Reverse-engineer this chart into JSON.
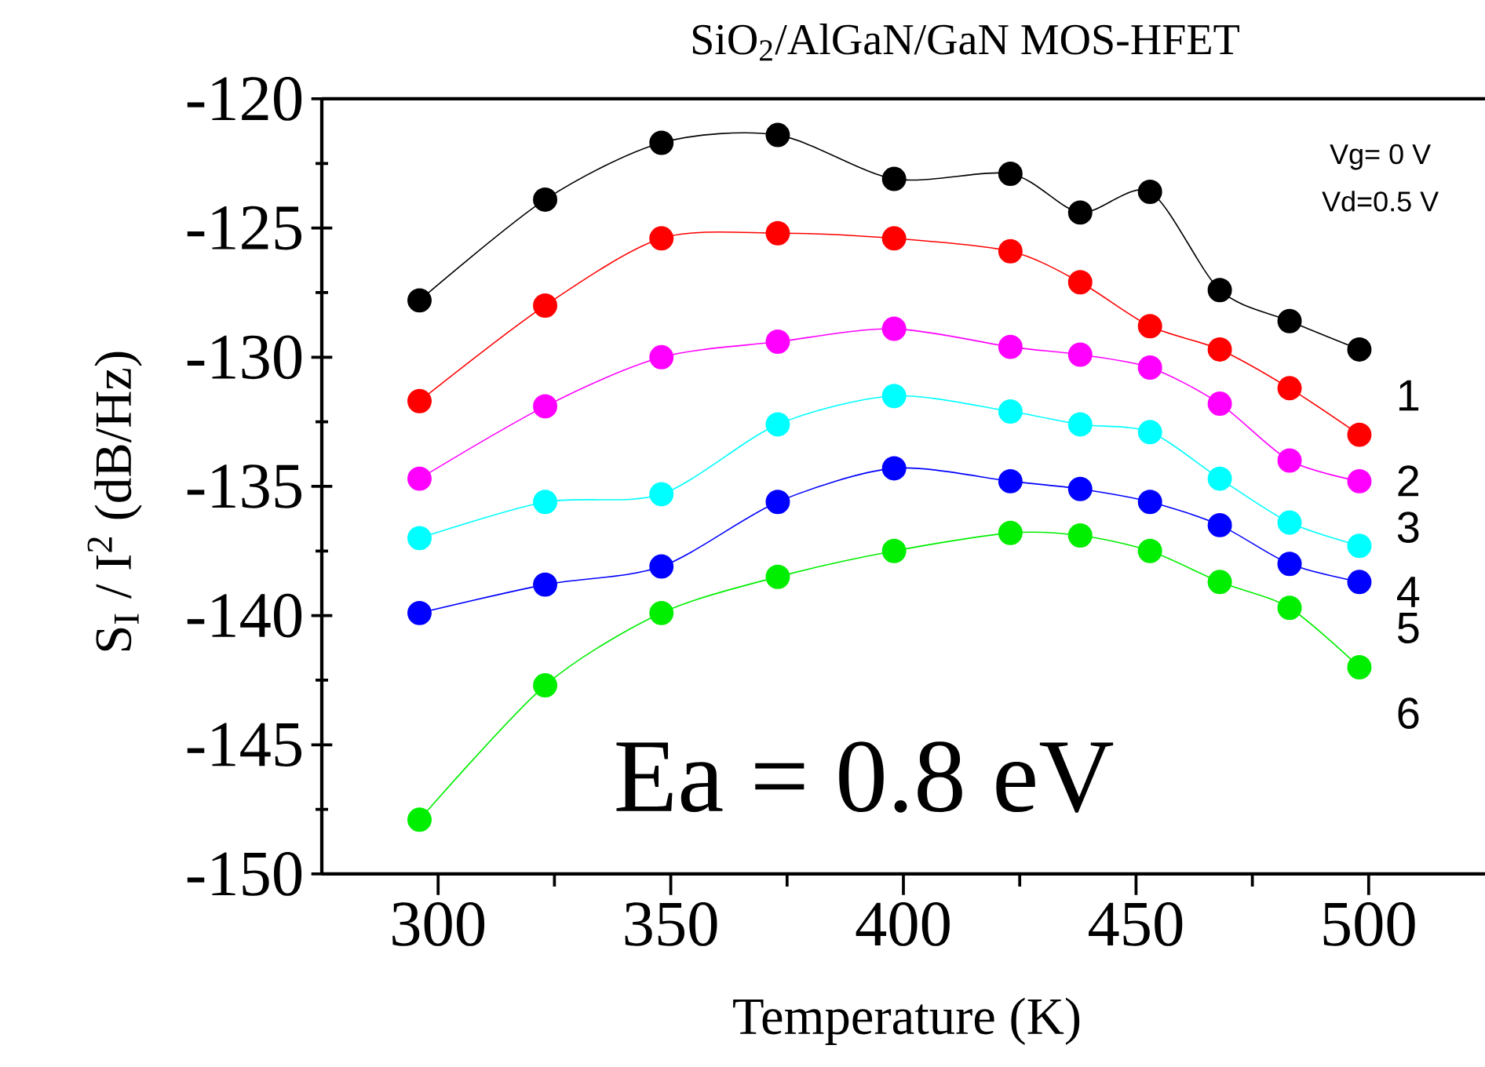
{
  "chart_data": {
    "type": "line",
    "title": "SiO$_{2}$/AlGaN/GaN   MOS-HFET",
    "xlabel": "Temperature  (K)",
    "ylabel": "S$_{I}$ / I$^{2}$   (dB/Hz)",
    "x": [
      296,
      323,
      348,
      373,
      398,
      423,
      438,
      453,
      468,
      483,
      498
    ],
    "series": [
      {
        "name": "1",
        "color": "#000000",
        "values": [
          -127.8,
          -123.9,
          -121.7,
          -121.4,
          -123.1,
          -122.9,
          -124.4,
          -123.6,
          -127.4,
          -128.6,
          -129.7
        ]
      },
      {
        "name": "2",
        "color": "#ff0000",
        "values": [
          -131.7,
          -128.0,
          -125.4,
          -125.2,
          -125.4,
          -125.9,
          -127.1,
          -128.8,
          -129.7,
          -131.2,
          -133.0
        ]
      },
      {
        "name": "3",
        "color": "#ff00ff",
        "values": [
          -134.7,
          -131.9,
          -130.0,
          -129.4,
          -128.9,
          -129.6,
          -129.9,
          -130.4,
          -131.8,
          -134.0,
          -134.8
        ]
      },
      {
        "name": "4",
        "color": "#00ffff",
        "values": [
          -137.0,
          -135.6,
          -135.3,
          -132.6,
          -131.5,
          -132.1,
          -132.6,
          -132.9,
          -134.7,
          -136.4,
          -137.3
        ]
      },
      {
        "name": "5",
        "color": "#0000ff",
        "values": [
          -139.9,
          -138.8,
          -138.1,
          -135.6,
          -134.3,
          -134.8,
          -135.1,
          -135.6,
          -136.5,
          -138.0,
          -138.7
        ]
      },
      {
        "name": "6",
        "color": "#00ee00",
        "values": [
          -147.9,
          -142.7,
          -139.9,
          -138.5,
          -137.5,
          -136.8,
          -136.9,
          -137.5,
          -138.7,
          -139.7,
          -142.0
        ]
      }
    ],
    "annotations": [
      "Vg= 0 V",
      "Vd=0.5 V",
      "Ea = 0.8 eV"
    ],
    "xlim": [
      275,
      525
    ],
    "xticks": [
      300,
      350,
      400,
      450,
      500
    ],
    "ylim": [
      -150,
      -120
    ],
    "yticks": [
      -150,
      -145,
      -140,
      -135,
      -130,
      -125,
      -120
    ],
    "marker": "circle",
    "line_style": "solid",
    "legend": false,
    "grid": false
  }
}
